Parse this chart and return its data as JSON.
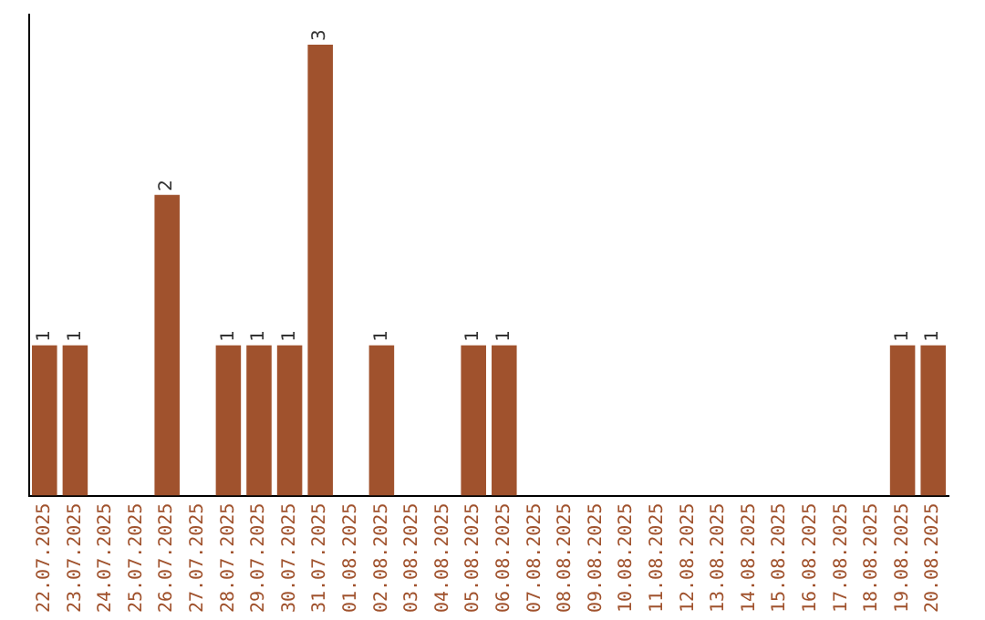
{
  "chart_data": {
    "type": "bar",
    "categories": [
      "22.07.2025",
      "23.07.2025",
      "24.07.2025",
      "25.07.2025",
      "26.07.2025",
      "27.07.2025",
      "28.07.2025",
      "29.07.2025",
      "30.07.2025",
      "31.07.2025",
      "01.08.2025",
      "02.08.2025",
      "03.08.2025",
      "04.08.2025",
      "05.08.2025",
      "06.08.2025",
      "07.08.2025",
      "08.08.2025",
      "09.08.2025",
      "10.08.2025",
      "11.08.2025",
      "12.08.2025",
      "13.08.2025",
      "14.08.2025",
      "15.08.2025",
      "16.08.2025",
      "17.08.2025",
      "18.08.2025",
      "19.08.2025",
      "20.08.2025"
    ],
    "values": [
      1,
      1,
      0,
      0,
      2,
      0,
      1,
      1,
      1,
      3,
      0,
      1,
      0,
      0,
      1,
      1,
      0,
      0,
      0,
      0,
      0,
      0,
      0,
      0,
      0,
      0,
      0,
      0,
      1,
      1
    ],
    "value_labels": [
      "1",
      "1",
      null,
      null,
      "2",
      null,
      "1",
      "1",
      "1",
      "3",
      null,
      "1",
      null,
      null,
      "1",
      "1",
      null,
      null,
      null,
      null,
      null,
      null,
      null,
      null,
      null,
      null,
      null,
      null,
      "1",
      "1"
    ],
    "color": "#a0522d",
    "ylim": [
      0,
      3.2
    ],
    "tick_labels": "x",
    "grid": false,
    "legend": false
  }
}
